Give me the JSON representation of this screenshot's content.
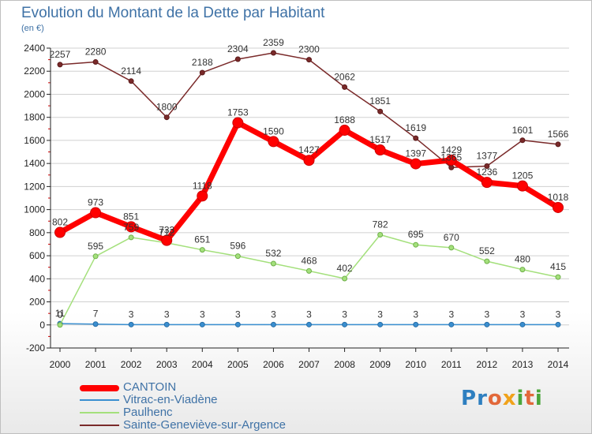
{
  "title": "Evolution du Montant de la Dette par Habitant",
  "subtitle": "(en €)",
  "logo_text": "Proxiti",
  "colors": {
    "cantoin": "#ff0000",
    "vitrac": "#3a8fd0",
    "paulhenc": "#a4e07c",
    "sainte": "#7a2a2a",
    "grid": "#d0d0d0",
    "text": "#3f72a6"
  },
  "chart_data": {
    "type": "line",
    "title": "Evolution du Montant de la Dette par Habitant",
    "subtitle": "(en €)",
    "x": [
      "2000",
      "2001",
      "2002",
      "2003",
      "2004",
      "2005",
      "2006",
      "2007",
      "2008",
      "2009",
      "2010",
      "2011",
      "2012",
      "2013",
      "2014"
    ],
    "ylim": [
      -200,
      2400
    ],
    "yticks": [
      -200,
      0,
      200,
      400,
      600,
      800,
      1000,
      1200,
      1400,
      1600,
      1800,
      2000,
      2200,
      2400
    ],
    "grid": "horizontal",
    "legend_position": "bottom-left",
    "series": [
      {
        "name": "CANTOIN",
        "key": "cantoin",
        "values": [
          802,
          973,
          851,
          733,
          1118,
          1753,
          1590,
          1427,
          1688,
          1517,
          1397,
          1429,
          1236,
          1205,
          1018
        ],
        "labels": [
          "802",
          "973",
          "851",
          "733",
          "1118",
          "1753",
          "1590",
          "1427",
          "1688",
          "1517",
          "1397",
          "1429",
          "1236",
          "1205",
          "1018"
        ]
      },
      {
        "name": "Vitrac-en-Viadène",
        "key": "vitrac",
        "values": [
          11,
          7,
          3,
          3,
          3,
          3,
          3,
          3,
          3,
          3,
          3,
          3,
          3,
          3,
          3
        ],
        "labels": [
          "11",
          "7",
          "3",
          "3",
          "3",
          "3",
          "3",
          "3",
          "3",
          "3",
          "3",
          "3",
          "3",
          "3",
          "3"
        ]
      },
      {
        "name": "Paulhenc",
        "key": "paulhenc",
        "values": [
          0,
          595,
          759,
          712,
          651,
          596,
          532,
          468,
          402,
          782,
          695,
          670,
          552,
          480,
          415
        ],
        "labels": [
          "0",
          "595",
          "759",
          "712",
          "651",
          "596",
          "532",
          "468",
          "402",
          "782",
          "695",
          "670",
          "552",
          "480",
          "415"
        ]
      },
      {
        "name": "Sainte-Geneviève-sur-Argence",
        "key": "sainte",
        "values": [
          2257,
          2280,
          2114,
          1800,
          2188,
          2304,
          2359,
          2300,
          2062,
          1851,
          1619,
          1365,
          1377,
          1601,
          1566
        ],
        "labels": [
          "2257",
          "2280",
          "2114",
          "1800",
          "2188",
          "2304",
          "2359",
          "2300",
          "2062",
          "1851",
          "1619",
          "1365",
          "1377",
          "1601",
          "1566"
        ]
      }
    ]
  },
  "legend": [
    {
      "label": "CANTOIN",
      "key": "cantoin"
    },
    {
      "label": "Vitrac-en-Viadène",
      "key": "vitrac"
    },
    {
      "label": "Paulhenc",
      "key": "paulhenc"
    },
    {
      "label": "Sainte-Geneviève-sur-Argence",
      "key": "sainte"
    }
  ]
}
